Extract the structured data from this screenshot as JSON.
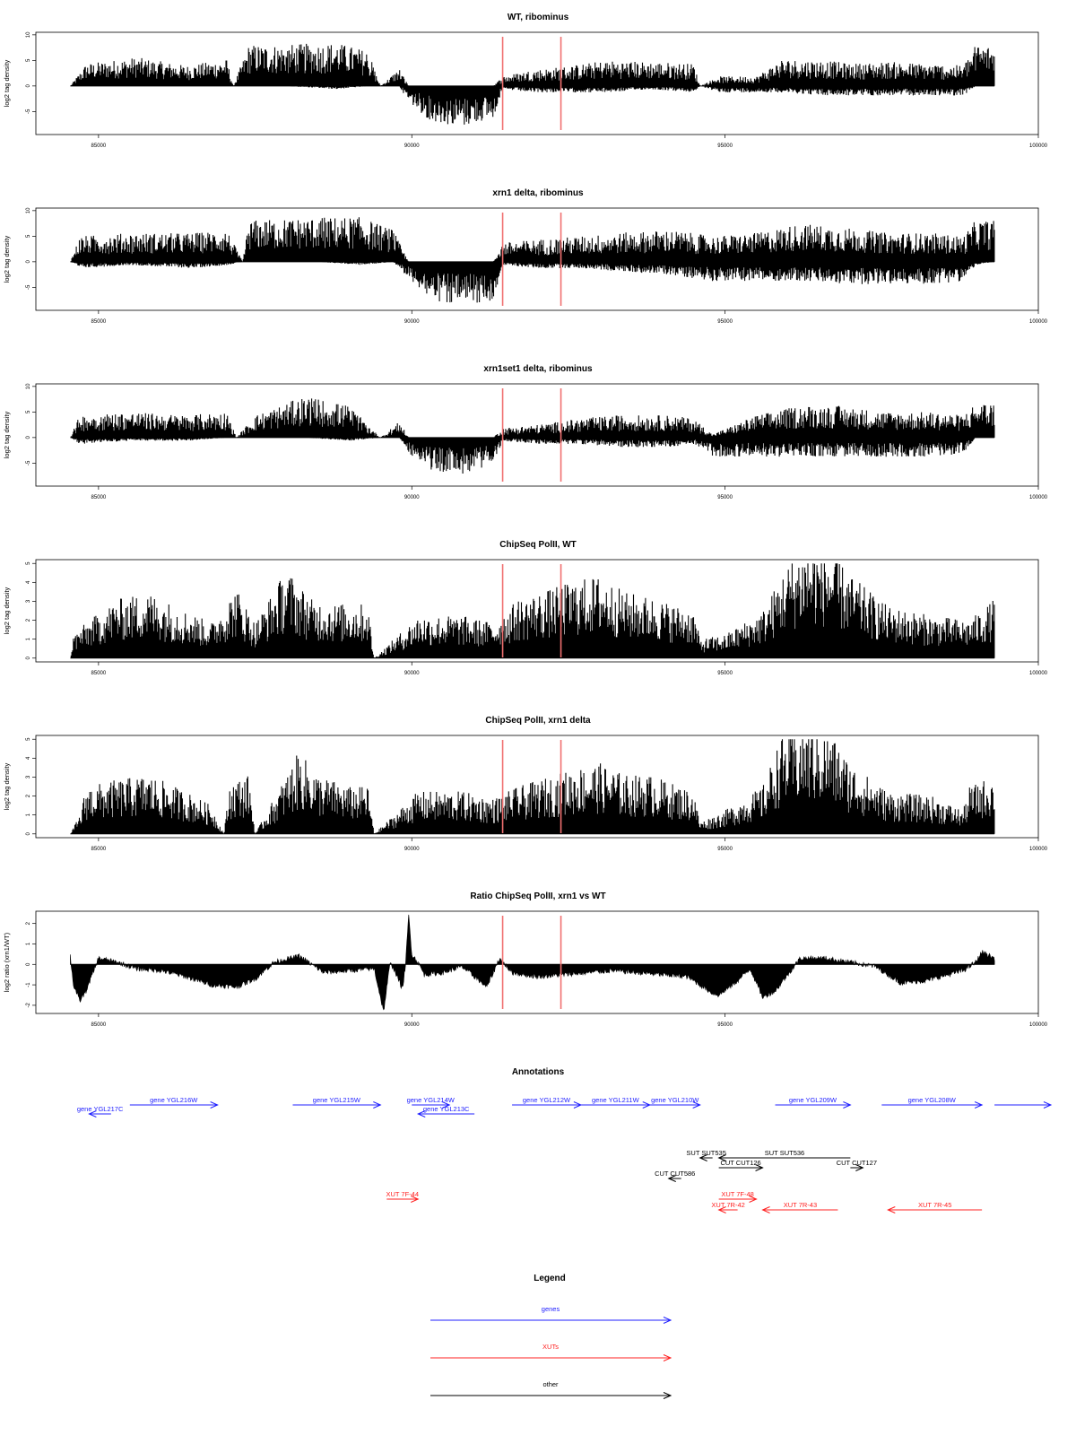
{
  "chart_data": [
    {
      "type": "bar",
      "title": "WT, ribominus",
      "ylabel": "log2 tag density",
      "xlim": [
        84000,
        100000
      ],
      "ylim": [
        -9.5,
        10.5
      ],
      "yticks": [
        "10",
        "5",
        "0",
        "-5"
      ],
      "xticks": [
        "85000",
        "90000",
        "95000",
        "100000"
      ],
      "marker_lines_x": [
        91450,
        92380
      ],
      "marker_color": "#f07070",
      "envelope": [
        [
          84550,
          0,
          0
        ],
        [
          84800,
          3.5,
          0
        ],
        [
          85600,
          4.5,
          0
        ],
        [
          86400,
          3.2,
          0
        ],
        [
          87050,
          4.2,
          0
        ],
        [
          87150,
          0,
          0
        ],
        [
          87400,
          6.5,
          0
        ],
        [
          88000,
          6.5,
          0
        ],
        [
          88800,
          6.8,
          -0.5
        ],
        [
          89300,
          5.5,
          0
        ],
        [
          89500,
          0,
          0
        ],
        [
          89800,
          2.8,
          0
        ],
        [
          89950,
          0,
          -2.5
        ],
        [
          90300,
          0,
          -5.5
        ],
        [
          90800,
          0,
          -6.5
        ],
        [
          91300,
          0,
          -5
        ],
        [
          91450,
          1.5,
          -0.5
        ],
        [
          91900,
          2.5,
          -1
        ],
        [
          92400,
          3.0,
          -1
        ],
        [
          93100,
          4.0,
          -1
        ],
        [
          93800,
          3.8,
          -0.5
        ],
        [
          94500,
          3.5,
          -1
        ],
        [
          94600,
          0,
          0
        ],
        [
          94900,
          1.5,
          -1
        ],
        [
          95500,
          1.5,
          -1
        ],
        [
          95900,
          4.2,
          -1
        ],
        [
          96600,
          4.0,
          -1.5
        ],
        [
          97000,
          3.5,
          -1.5
        ],
        [
          97600,
          3.8,
          -1.5
        ],
        [
          98200,
          3.5,
          -1.5
        ],
        [
          98800,
          3.2,
          -1.5
        ],
        [
          99000,
          6.5,
          0
        ],
        [
          99300,
          6.5,
          0
        ]
      ]
    },
    {
      "type": "bar",
      "title": "xrn1 delta, ribominus",
      "ylabel": "log2 tag density",
      "xlim": [
        84000,
        100000
      ],
      "ylim": [
        -9.5,
        10.5
      ],
      "yticks": [
        "10",
        "5",
        "0",
        "-5"
      ],
      "xticks": [
        "85000",
        "90000",
        "95000",
        "100000"
      ],
      "marker_lines_x": [
        91450,
        92380
      ],
      "marker_color": "#f07070",
      "envelope": [
        [
          84550,
          0,
          0
        ],
        [
          84700,
          4.0,
          -1
        ],
        [
          85500,
          4.5,
          -0.5
        ],
        [
          86500,
          4.5,
          -1
        ],
        [
          87050,
          5.0,
          -0.5
        ],
        [
          87300,
          0,
          0
        ],
        [
          87400,
          6.5,
          0
        ],
        [
          88500,
          7.0,
          0
        ],
        [
          89200,
          7.0,
          -0.5
        ],
        [
          89700,
          5.0,
          0
        ],
        [
          89950,
          0,
          -2.5
        ],
        [
          90300,
          0,
          -6
        ],
        [
          90800,
          0,
          -7
        ],
        [
          91300,
          0,
          -6
        ],
        [
          91450,
          3.0,
          -0.5
        ],
        [
          92000,
          3.5,
          -1
        ],
        [
          92700,
          4.0,
          -1
        ],
        [
          93300,
          4.5,
          -1.5
        ],
        [
          94100,
          5.0,
          -2
        ],
        [
          94800,
          4.0,
          -3
        ],
        [
          95500,
          4.5,
          -3
        ],
        [
          96200,
          6.0,
          -3
        ],
        [
          96800,
          5.5,
          -3.5
        ],
        [
          97600,
          4.5,
          -3.5
        ],
        [
          98300,
          4.5,
          -3.5
        ],
        [
          98800,
          4.0,
          -3
        ],
        [
          99000,
          6.5,
          -0.5
        ],
        [
          99300,
          6.5,
          0
        ]
      ]
    },
    {
      "type": "bar",
      "title": "xrn1set1 delta, ribominus",
      "ylabel": "log2 tag density",
      "xlim": [
        84000,
        100000
      ],
      "ylim": [
        -9.5,
        10.5
      ],
      "yticks": [
        "10",
        "5",
        "0",
        "-5"
      ],
      "xticks": [
        "85000",
        "90000",
        "95000",
        "100000"
      ],
      "marker_lines_x": [
        91450,
        92380
      ],
      "marker_color": "#f07070",
      "envelope": [
        [
          84550,
          0,
          0
        ],
        [
          84700,
          3.5,
          -1
        ],
        [
          85500,
          4.0,
          -0.5
        ],
        [
          86400,
          3.5,
          -0.5
        ],
        [
          87050,
          4.0,
          0
        ],
        [
          87200,
          0,
          0
        ],
        [
          87500,
          3.5,
          0
        ],
        [
          88300,
          6.5,
          0
        ],
        [
          89000,
          5.0,
          -0.5
        ],
        [
          89500,
          0,
          0
        ],
        [
          89800,
          2.5,
          0
        ],
        [
          89950,
          0,
          -2.5
        ],
        [
          90300,
          0,
          -5
        ],
        [
          90800,
          0,
          -6
        ],
        [
          91300,
          0,
          -4
        ],
        [
          91450,
          1.5,
          -0.5
        ],
        [
          92000,
          2.0,
          -1
        ],
        [
          92700,
          3.0,
          -1
        ],
        [
          93300,
          3.5,
          -1.5
        ],
        [
          94100,
          3.5,
          -1.5
        ],
        [
          94500,
          3.0,
          -1
        ],
        [
          94800,
          0.5,
          -3
        ],
        [
          95500,
          3.5,
          -3
        ],
        [
          96200,
          5.0,
          -3
        ],
        [
          96800,
          5.0,
          -3
        ],
        [
          97600,
          4.0,
          -3
        ],
        [
          98300,
          4.0,
          -3
        ],
        [
          98800,
          3.5,
          -2.5
        ],
        [
          99000,
          5.5,
          0
        ],
        [
          99300,
          5.5,
          0
        ]
      ]
    },
    {
      "type": "bar",
      "title": "ChipSeq PolII, WT",
      "ylabel": "log2 tag density",
      "xlim": [
        84000,
        100000
      ],
      "ylim": [
        -0.2,
        5.2
      ],
      "yticks": [
        "5",
        "4",
        "3",
        "2",
        "1",
        "0"
      ],
      "xticks": [
        "85000",
        "90000",
        "95000",
        "100000"
      ],
      "marker_lines_x": [
        91450,
        92380
      ],
      "marker_color": "#f07070",
      "envelope": [
        [
          84550,
          0,
          0
        ],
        [
          84600,
          1.0,
          0
        ],
        [
          84800,
          1.5,
          0
        ],
        [
          85300,
          2.5,
          0
        ],
        [
          85800,
          2.8,
          0
        ],
        [
          86400,
          2.0,
          0
        ],
        [
          86800,
          1.5,
          0
        ],
        [
          87200,
          3.0,
          0
        ],
        [
          87500,
          1.5,
          0
        ],
        [
          88000,
          3.8,
          0
        ],
        [
          88400,
          2.5,
          0
        ],
        [
          88800,
          2.3,
          0
        ],
        [
          89300,
          2.3,
          0
        ],
        [
          89400,
          0,
          0
        ],
        [
          90100,
          1.8,
          0
        ],
        [
          90800,
          1.8,
          0
        ],
        [
          91300,
          1.5,
          0
        ],
        [
          91700,
          2.5,
          0
        ],
        [
          92300,
          3.0,
          0
        ],
        [
          92600,
          3.3,
          0
        ],
        [
          93000,
          3.5,
          0
        ],
        [
          93400,
          2.8,
          0
        ],
        [
          93800,
          2.6,
          0
        ],
        [
          94500,
          2.0,
          0
        ],
        [
          94600,
          0.8,
          0
        ],
        [
          95000,
          1.0,
          0
        ],
        [
          95600,
          2.0,
          0
        ],
        [
          96000,
          4.0,
          0
        ],
        [
          96300,
          4.8,
          0
        ],
        [
          96700,
          4.5,
          0
        ],
        [
          97000,
          3.5,
          0
        ],
        [
          97600,
          2.2,
          0
        ],
        [
          98300,
          1.8,
          0
        ],
        [
          98900,
          1.6,
          0
        ],
        [
          99300,
          2.5,
          0
        ]
      ]
    },
    {
      "type": "bar",
      "title": "ChipSeq PolII, xrn1 delta",
      "ylabel": "log2 tag density",
      "xlim": [
        84000,
        100000
      ],
      "ylim": [
        -0.2,
        5.2
      ],
      "yticks": [
        "5",
        "4",
        "3",
        "2",
        "1",
        "0"
      ],
      "xticks": [
        "85000",
        "90000",
        "95000",
        "100000"
      ],
      "marker_lines_x": [
        91450,
        92380
      ],
      "marker_color": "#f07070",
      "envelope": [
        [
          84550,
          0,
          0
        ],
        [
          84700,
          0.8,
          0
        ],
        [
          84800,
          2.0,
          0
        ],
        [
          85300,
          2.3,
          0
        ],
        [
          85800,
          2.5,
          0
        ],
        [
          86400,
          1.8,
          0
        ],
        [
          86800,
          1.2,
          0
        ],
        [
          87000,
          0,
          0
        ],
        [
          87100,
          2.2,
          0
        ],
        [
          87400,
          2.5,
          0
        ],
        [
          87500,
          0,
          0
        ],
        [
          87900,
          2.0,
          0
        ],
        [
          88200,
          3.5,
          0
        ],
        [
          88500,
          2.5,
          0
        ],
        [
          89000,
          2.0,
          0
        ],
        [
          89300,
          2.0,
          0
        ],
        [
          89400,
          0,
          0
        ],
        [
          90100,
          1.8,
          0
        ],
        [
          90800,
          1.8,
          0
        ],
        [
          91300,
          1.5,
          0
        ],
        [
          91700,
          2.0,
          0
        ],
        [
          92300,
          2.5,
          0
        ],
        [
          92600,
          2.8,
          0
        ],
        [
          93000,
          3.0,
          0
        ],
        [
          93400,
          2.5,
          0
        ],
        [
          93800,
          2.5,
          0
        ],
        [
          94500,
          1.8,
          0
        ],
        [
          94600,
          0.5,
          0
        ],
        [
          95000,
          1.0,
          0
        ],
        [
          95600,
          2.0,
          0
        ],
        [
          95900,
          4.2,
          0
        ],
        [
          96300,
          4.6,
          0
        ],
        [
          96700,
          4.2,
          0
        ],
        [
          97000,
          3.0,
          0
        ],
        [
          97600,
          1.8,
          0
        ],
        [
          98300,
          1.6,
          0
        ],
        [
          98800,
          1.0,
          0
        ],
        [
          98900,
          2.0,
          0
        ],
        [
          99300,
          2.5,
          0
        ]
      ]
    },
    {
      "type": "area",
      "title": "Ratio ChipSeq PolII, xrn1 vs WT",
      "ylabel": "log2 ratio (xrn1/WT)",
      "xlim": [
        84000,
        100000
      ],
      "ylim": [
        -2.4,
        2.6
      ],
      "yticks": [
        "2",
        "1",
        "0",
        "-1",
        "-2"
      ],
      "xticks": [
        "85000",
        "90000",
        "95000",
        "100000"
      ],
      "marker_lines_x": [
        91450,
        92380
      ],
      "marker_color": "#f07070",
      "x": [
        84550,
        84600,
        84700,
        84800,
        85000,
        85300,
        85600,
        86000,
        86400,
        86800,
        87200,
        87500,
        87800,
        88200,
        88600,
        89000,
        89400,
        89550,
        89650,
        89700,
        89850,
        89900,
        89950,
        90000,
        90100,
        90200,
        90500,
        90800,
        91200,
        91400,
        91600,
        92000,
        92400,
        92800,
        93200,
        93600,
        94000,
        94400,
        94800,
        94900,
        95200,
        95400,
        95600,
        95800,
        96200,
        96600,
        97000,
        97400,
        97800,
        98200,
        98800,
        99000,
        99100,
        99300
      ],
      "y": [
        0.4,
        -1.0,
        -1.8,
        -1.3,
        0.3,
        0.1,
        -0.2,
        -0.3,
        -0.6,
        -1.0,
        -1.1,
        -0.7,
        0.1,
        0.4,
        -0.4,
        -0.3,
        -0.2,
        -2.3,
        0.0,
        -0.1,
        -1.2,
        0.0,
        2.4,
        0.5,
        0.1,
        -0.5,
        -0.4,
        -0.1,
        -1.1,
        0.3,
        -0.4,
        -0.6,
        -0.5,
        -0.4,
        -0.3,
        -0.4,
        -0.5,
        -0.6,
        -1.4,
        -1.5,
        -0.8,
        -0.2,
        -1.6,
        -1.3,
        0.3,
        0.3,
        0.1,
        -0.1,
        -0.9,
        -0.8,
        -0.3,
        0.1,
        0.6,
        0.3
      ]
    }
  ],
  "annotations_panel": {
    "title": "Annotations",
    "xlim": [
      84000,
      100000
    ],
    "genes": [
      {
        "label": "gene YGL217C",
        "start": 85200,
        "end": 84850,
        "row": 1
      },
      {
        "label": "gene YGL216W",
        "start": 85500,
        "end": 86900,
        "row": 0
      },
      {
        "label": "gene YGL215W",
        "start": 88100,
        "end": 89500,
        "row": 0
      },
      {
        "label": "gene YGL214W",
        "start": 90000,
        "end": 90600,
        "row": 0
      },
      {
        "label": "gene YGL213C",
        "start": 91000,
        "end": 90100,
        "row": 1
      },
      {
        "label": "gene YGL212W",
        "start": 91600,
        "end": 92700,
        "row": 0
      },
      {
        "label": "gene YGL211W",
        "start": 92700,
        "end": 93800,
        "row": 0
      },
      {
        "label": "gene YGL210W",
        "start": 93800,
        "end": 94600,
        "row": 0
      },
      {
        "label": "gene YGL209W",
        "start": 95800,
        "end": 97000,
        "row": 0
      },
      {
        "label": "gene YGL208W",
        "start": 97500,
        "end": 99100,
        "row": 0
      },
      {
        "label": "",
        "start": 99300,
        "end": 100200,
        "row": 0
      }
    ],
    "xuts": [
      {
        "label": "XUT 7F-44",
        "start": 89600,
        "end": 90100,
        "row": 0
      },
      {
        "label": "XUT 7F-48",
        "start": 94900,
        "end": 95500,
        "row": 0
      },
      {
        "label": "XUT 7R-42",
        "start": 95200,
        "end": 94900,
        "row": 1
      },
      {
        "label": "XUT 7R-43",
        "start": 96800,
        "end": 95600,
        "row": 1
      },
      {
        "label": "XUT 7R-45",
        "start": 99100,
        "end": 97600,
        "row": 1
      }
    ],
    "other": [
      {
        "label": "SUT SUT535",
        "start": 94800,
        "end": 94600,
        "row": 0
      },
      {
        "label": "SUT SUT536",
        "start": 97000,
        "end": 94900,
        "row": 0
      },
      {
        "label": "CUT CUT126",
        "start": 94900,
        "end": 95600,
        "row": 1
      },
      {
        "label": "CUT CUT127",
        "start": 97000,
        "end": 97200,
        "row": 1
      },
      {
        "label": "CUT CUT586",
        "start": 94300,
        "end": 94100,
        "row": 2
      }
    ]
  },
  "legend_panel": {
    "title": "Legend",
    "items": [
      {
        "label": "genes",
        "color": "#2020ff"
      },
      {
        "label": "XUTs",
        "color": "#ff2020"
      },
      {
        "label": "other",
        "color": "#000000"
      }
    ]
  },
  "colors": {
    "genes": "#2020ff",
    "xuts": "#ff2020",
    "other": "#000000",
    "marker": "#f07070"
  }
}
